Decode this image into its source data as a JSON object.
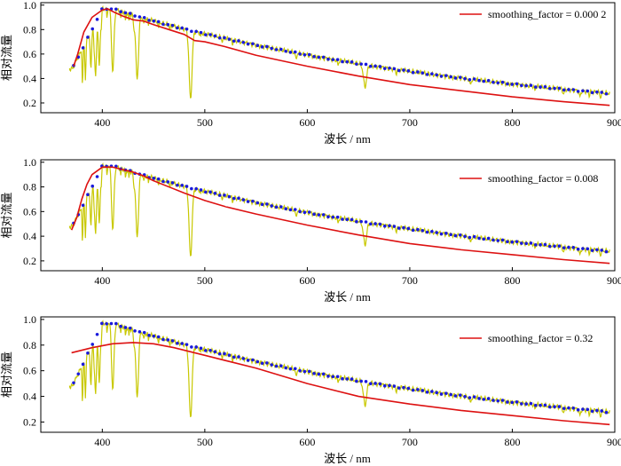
{
  "colors": {
    "spectrum": "#c8c800",
    "points": "#1a1adc",
    "fit": "#dd1111"
  },
  "chart_data": [
    {
      "type": "line",
      "xlabel": "波长 / nm",
      "ylabel": "相对流量",
      "xlim": [
        340,
        900
      ],
      "ylim": [
        0.12,
        1.02
      ],
      "xticks": [
        400,
        500,
        600,
        700,
        800,
        900
      ],
      "yticks": [
        0.2,
        0.4,
        0.6,
        0.8,
        1.0
      ],
      "legend_position": "top-right",
      "legend": "smoothing_factor = 0.000 2",
      "series": [
        {
          "kind": "spectrum"
        },
        {
          "kind": "points"
        },
        {
          "kind": "fit",
          "x": [
            372,
            376,
            382,
            390,
            400,
            405,
            412,
            420,
            430,
            440,
            450,
            465,
            480,
            490,
            500,
            520,
            550,
            600,
            650,
            700,
            750,
            800,
            850,
            895
          ],
          "y": [
            0.5,
            0.6,
            0.78,
            0.9,
            0.96,
            0.97,
            0.94,
            0.91,
            0.88,
            0.87,
            0.84,
            0.8,
            0.76,
            0.71,
            0.7,
            0.66,
            0.59,
            0.5,
            0.42,
            0.35,
            0.3,
            0.25,
            0.21,
            0.18
          ]
        }
      ]
    },
    {
      "type": "line",
      "xlabel": "波长 / nm",
      "ylabel": "相对流量",
      "xlim": [
        340,
        900
      ],
      "ylim": [
        0.12,
        1.02
      ],
      "xticks": [
        400,
        500,
        600,
        700,
        800,
        900
      ],
      "yticks": [
        0.2,
        0.4,
        0.6,
        0.8,
        1.0
      ],
      "legend_position": "top-right",
      "legend": "smoothing_factor = 0.008",
      "series": [
        {
          "kind": "spectrum"
        },
        {
          "kind": "points"
        },
        {
          "kind": "fit",
          "x": [
            370,
            375,
            380,
            385,
            390,
            400,
            410,
            420,
            430,
            440,
            450,
            465,
            480,
            500,
            520,
            550,
            600,
            650,
            700,
            750,
            800,
            850,
            895
          ],
          "y": [
            0.45,
            0.55,
            0.7,
            0.82,
            0.9,
            0.96,
            0.96,
            0.94,
            0.92,
            0.89,
            0.85,
            0.8,
            0.75,
            0.69,
            0.64,
            0.58,
            0.49,
            0.41,
            0.34,
            0.29,
            0.25,
            0.21,
            0.18
          ]
        }
      ]
    },
    {
      "type": "line",
      "xlabel": "波长 / nm",
      "ylabel": "相对流量",
      "xlim": [
        340,
        900
      ],
      "ylim": [
        0.12,
        1.02
      ],
      "xticks": [
        400,
        500,
        600,
        700,
        800,
        900
      ],
      "yticks": [
        0.2,
        0.4,
        0.6,
        0.8,
        1.0
      ],
      "legend_position": "top-right",
      "legend": "smoothing_factor = 0.32",
      "series": [
        {
          "kind": "spectrum"
        },
        {
          "kind": "points"
        },
        {
          "kind": "fit",
          "x": [
            370,
            390,
            410,
            430,
            450,
            470,
            500,
            550,
            600,
            650,
            700,
            750,
            800,
            850,
            895
          ],
          "y": [
            0.74,
            0.78,
            0.81,
            0.82,
            0.81,
            0.78,
            0.72,
            0.62,
            0.5,
            0.4,
            0.34,
            0.29,
            0.25,
            0.21,
            0.18
          ]
        }
      ]
    }
  ]
}
